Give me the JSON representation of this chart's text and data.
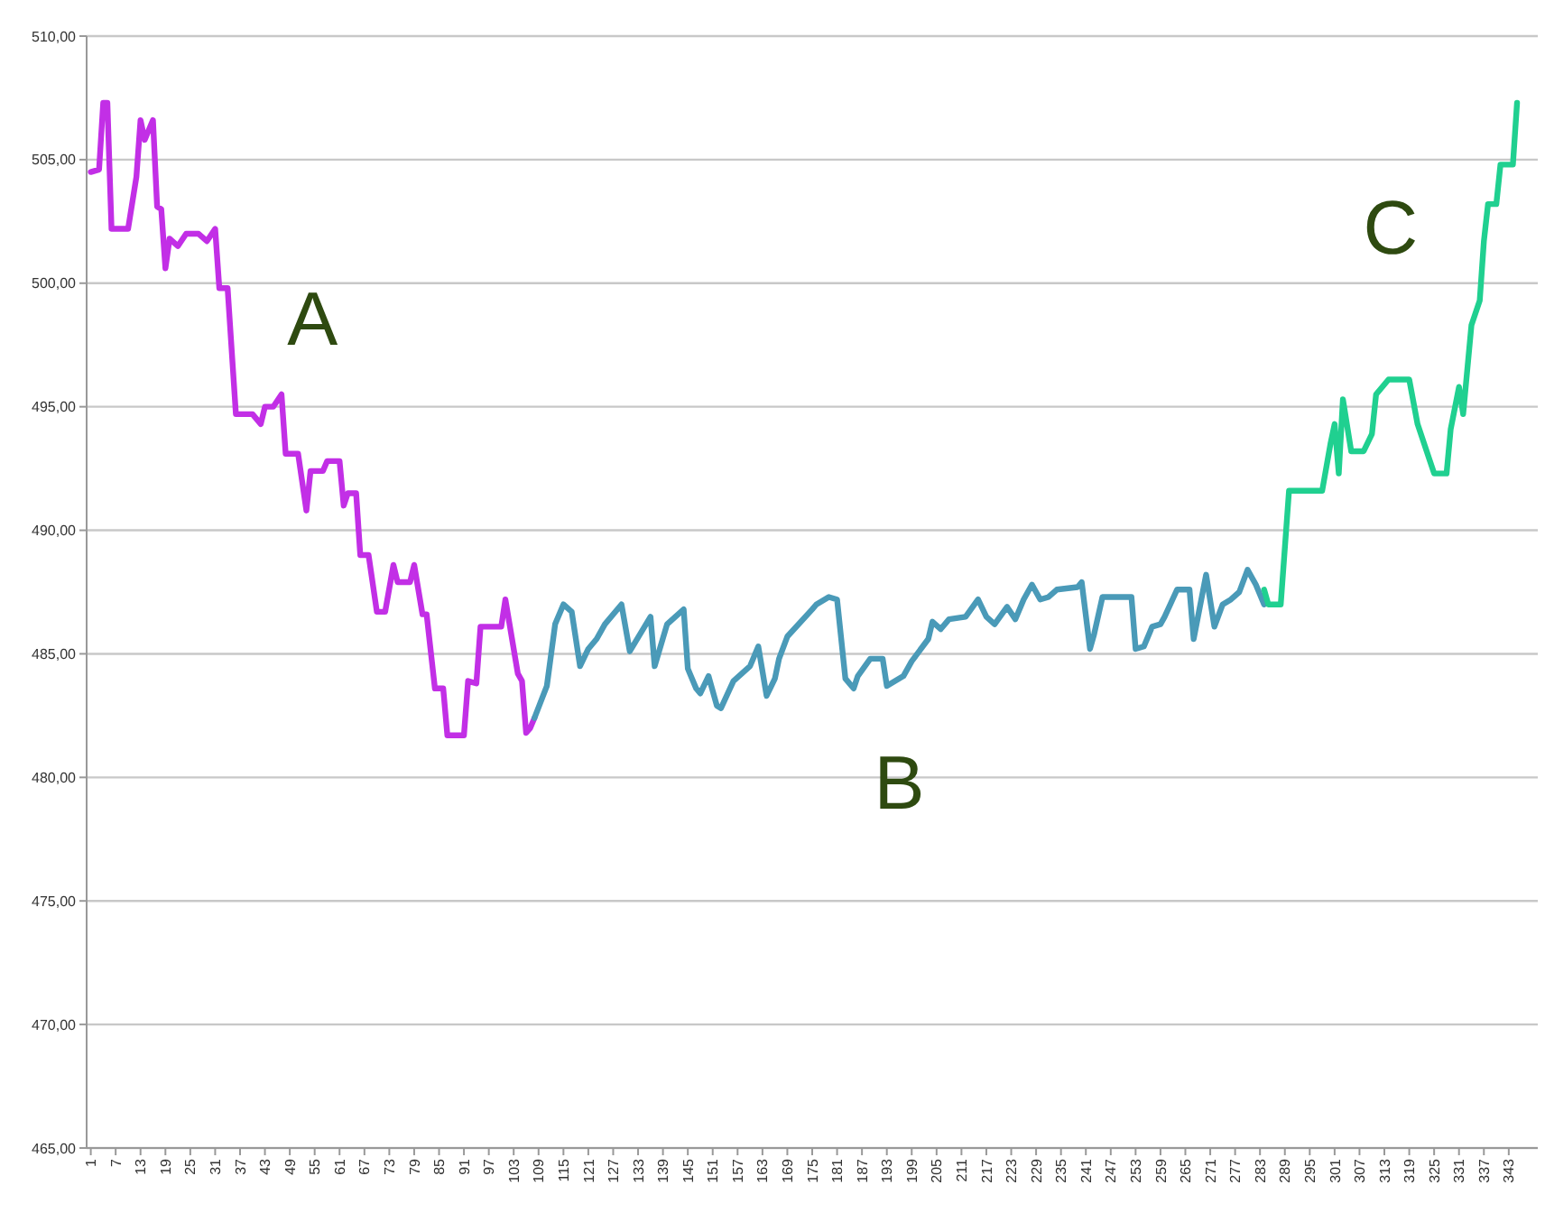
{
  "chart_data": {
    "type": "line",
    "xlim": [
      0,
      350
    ],
    "ylim": [
      465,
      510
    ],
    "xticks": [
      1,
      7,
      13,
      19,
      25,
      31,
      37,
      43,
      49,
      55,
      61,
      67,
      73,
      79,
      85,
      91,
      97,
      103,
      109,
      115,
      121,
      127,
      133,
      139,
      145,
      151,
      157,
      163,
      169,
      175,
      181,
      187,
      193,
      199,
      205,
      211,
      217,
      223,
      229,
      235,
      241,
      247,
      253,
      259,
      265,
      271,
      277,
      283,
      289,
      295,
      301,
      307,
      313,
      319,
      325,
      331,
      337,
      343
    ],
    "yticks": [
      {
        "value": 465,
        "label": "465,00"
      },
      {
        "value": 470,
        "label": "470,00"
      },
      {
        "value": 475,
        "label": "475,00"
      },
      {
        "value": 480,
        "label": "480,00"
      },
      {
        "value": 485,
        "label": "485,00"
      },
      {
        "value": 490,
        "label": "490,00"
      },
      {
        "value": 495,
        "label": "495,00"
      },
      {
        "value": 500,
        "label": "500,00"
      },
      {
        "value": 505,
        "label": "505,00"
      },
      {
        "value": 510,
        "label": "510,00"
      }
    ],
    "grid": "y",
    "marker": "none",
    "line_style": "solid",
    "series": [
      {
        "color": "#c22fe6",
        "x": [
          1,
          3,
          4,
          5,
          6,
          10,
          12,
          13,
          14,
          16,
          17,
          18,
          19,
          20,
          22,
          24,
          27,
          29,
          31,
          32,
          34,
          36,
          40,
          42,
          43,
          45,
          47,
          48,
          51,
          53,
          54,
          57,
          58,
          61,
          62,
          63,
          65,
          66,
          68,
          70,
          72,
          74,
          75,
          78,
          79,
          81,
          82,
          84,
          86,
          87,
          91,
          92,
          94,
          95,
          100,
          101,
          102,
          104,
          105,
          106,
          107,
          108
        ],
        "values": [
          504.5,
          504.6,
          507.3,
          507.3,
          502.2,
          502.2,
          504.3,
          506.6,
          505.8,
          506.6,
          503.1,
          503,
          500.6,
          501.8,
          501.5,
          502,
          502,
          501.7,
          502.2,
          499.8,
          499.8,
          494.7,
          494.7,
          494.3,
          495,
          495,
          495.5,
          493.1,
          493.1,
          490.8,
          492.4,
          492.4,
          492.8,
          492.8,
          491,
          491.5,
          491.5,
          489,
          489,
          486.7,
          486.7,
          488.6,
          487.9,
          487.9,
          488.6,
          486.6,
          486.6,
          483.6,
          483.6,
          481.7,
          481.7,
          483.9,
          483.8,
          486.1,
          486.1,
          487.2,
          486.2,
          484.2,
          483.9,
          481.8,
          482,
          482.4
        ]
      },
      {
        "color": "#4a9ab8",
        "x": [
          108,
          111,
          113,
          115,
          117,
          119,
          121,
          123,
          125,
          129,
          131,
          136,
          137,
          140,
          144,
          145,
          147,
          148,
          150,
          152,
          153,
          156,
          160,
          162,
          164,
          166,
          167,
          169,
          175,
          176,
          179,
          181,
          183,
          185,
          186,
          189,
          192,
          193,
          197,
          199,
          203,
          204,
          206,
          208,
          212,
          215,
          217,
          219,
          222,
          224,
          226,
          228,
          230,
          232,
          234,
          239,
          240,
          242,
          243,
          245,
          252,
          253,
          255,
          257,
          259,
          260,
          263,
          266,
          267,
          270,
          272,
          274,
          276,
          278,
          280,
          282,
          284
        ],
        "values": [
          482.4,
          483.7,
          486.2,
          487,
          486.7,
          484.5,
          485.2,
          485.6,
          486.2,
          487,
          485.1,
          486.5,
          484.5,
          486.2,
          486.8,
          484.4,
          483.6,
          483.4,
          484.1,
          482.9,
          482.8,
          483.9,
          484.5,
          485.3,
          483.3,
          484,
          484.8,
          485.7,
          486.8,
          487,
          487.3,
          487.2,
          484,
          483.6,
          484.1,
          484.8,
          484.8,
          483.7,
          484.1,
          484.7,
          485.6,
          486.3,
          486,
          486.4,
          486.5,
          487.2,
          486.5,
          486.2,
          486.9,
          486.4,
          487.2,
          487.8,
          487.2,
          487.3,
          487.6,
          487.7,
          487.9,
          485.2,
          485.8,
          487.3,
          487.3,
          485.2,
          485.3,
          486.1,
          486.2,
          486.5,
          487.6,
          487.6,
          485.6,
          488.2,
          486.1,
          487,
          487.2,
          487.5,
          488.4,
          487.8,
          487
        ]
      },
      {
        "color": "#20d090",
        "x": [
          284,
          285,
          288,
          290,
          298,
          300,
          301,
          302,
          303,
          305,
          308,
          310,
          311,
          314,
          319,
          321,
          325,
          328,
          329,
          331,
          332,
          334,
          336,
          337,
          338,
          340,
          341,
          344,
          345
        ],
        "values": [
          487.6,
          487,
          487,
          491.6,
          491.6,
          493.5,
          494.3,
          492.3,
          495.3,
          493.2,
          493.2,
          493.9,
          495.5,
          496.1,
          496.1,
          494.3,
          492.3,
          492.3,
          494.1,
          495.8,
          494.7,
          498.3,
          499.3,
          501.7,
          503.2,
          503.2,
          504.8,
          504.8,
          507.3
        ]
      }
    ],
    "annotations": [
      "A",
      "B",
      "C"
    ]
  }
}
